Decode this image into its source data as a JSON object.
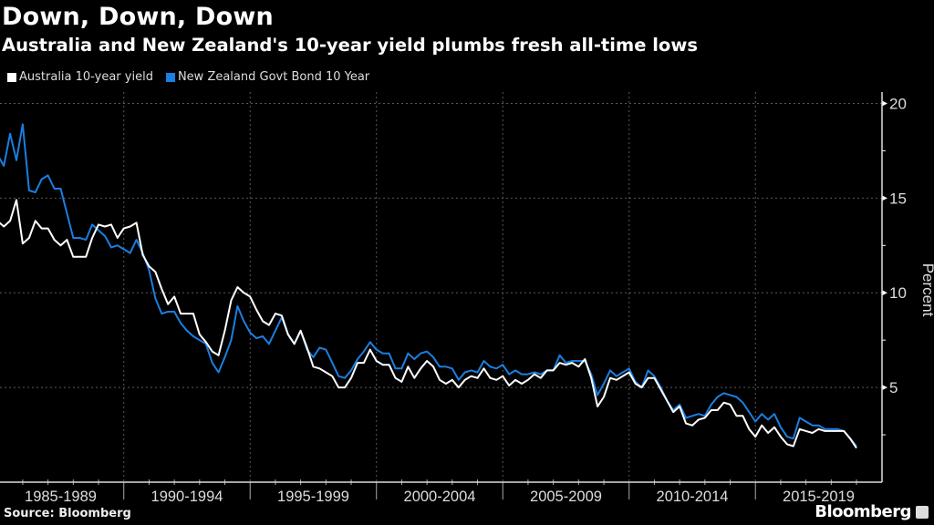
{
  "title": "Down, Down, Down",
  "subtitle": "Australia and New Zealand's 10-year yield plumbs fresh all-time lows",
  "source": "Source: Bloomberg",
  "logo": "Bloomberg",
  "colors": {
    "australia": "#ffffff",
    "new_zealand": "#1a7fe0",
    "background": "#000000",
    "grid": "#5a5a5a"
  },
  "chart_data": {
    "type": "line",
    "title": "Down, Down, Down",
    "subtitle": "Australia and New Zealand's 10-year yield plumbs fresh all-time lows",
    "ylabel": "Percent",
    "xlabel": "",
    "ylim": [
      0,
      20.6
    ],
    "yticks": [
      5,
      10,
      15,
      20
    ],
    "y_axis_side": "right",
    "grid": true,
    "legend_position": "top-left",
    "x_tick_labels": [
      "1985-1989",
      "1990-1994",
      "1995-1999",
      "2000-2004",
      "2005-2009",
      "2010-2014",
      "2015-2019"
    ],
    "x": [
      "1985-Q1",
      "1985-Q2",
      "1985-Q3",
      "1985-Q4",
      "1986-Q1",
      "1986-Q2",
      "1986-Q3",
      "1986-Q4",
      "1987-Q1",
      "1987-Q2",
      "1987-Q3",
      "1987-Q4",
      "1988-Q1",
      "1988-Q2",
      "1988-Q3",
      "1988-Q4",
      "1989-Q1",
      "1989-Q2",
      "1989-Q3",
      "1989-Q4",
      "1990-Q1",
      "1990-Q2",
      "1990-Q3",
      "1990-Q4",
      "1991-Q1",
      "1991-Q2",
      "1991-Q3",
      "1991-Q4",
      "1992-Q1",
      "1992-Q2",
      "1992-Q3",
      "1992-Q4",
      "1993-Q1",
      "1993-Q2",
      "1993-Q3",
      "1993-Q4",
      "1994-Q1",
      "1994-Q2",
      "1994-Q3",
      "1994-Q4",
      "1995-Q1",
      "1995-Q2",
      "1995-Q3",
      "1995-Q4",
      "1996-Q1",
      "1996-Q2",
      "1996-Q3",
      "1996-Q4",
      "1997-Q1",
      "1997-Q2",
      "1997-Q3",
      "1997-Q4",
      "1998-Q1",
      "1998-Q2",
      "1998-Q3",
      "1998-Q4",
      "1999-Q1",
      "1999-Q2",
      "1999-Q3",
      "1999-Q4",
      "2000-Q1",
      "2000-Q2",
      "2000-Q3",
      "2000-Q4",
      "2001-Q1",
      "2001-Q2",
      "2001-Q3",
      "2001-Q4",
      "2002-Q1",
      "2002-Q2",
      "2002-Q3",
      "2002-Q4",
      "2003-Q1",
      "2003-Q2",
      "2003-Q3",
      "2003-Q4",
      "2004-Q1",
      "2004-Q2",
      "2004-Q3",
      "2004-Q4",
      "2005-Q1",
      "2005-Q2",
      "2005-Q3",
      "2005-Q4",
      "2006-Q1",
      "2006-Q2",
      "2006-Q3",
      "2006-Q4",
      "2007-Q1",
      "2007-Q2",
      "2007-Q3",
      "2007-Q4",
      "2008-Q1",
      "2008-Q2",
      "2008-Q3",
      "2008-Q4",
      "2009-Q1",
      "2009-Q2",
      "2009-Q3",
      "2009-Q4",
      "2010-Q1",
      "2010-Q2",
      "2010-Q3",
      "2010-Q4",
      "2011-Q1",
      "2011-Q2",
      "2011-Q3",
      "2011-Q4",
      "2012-Q1",
      "2012-Q2",
      "2012-Q3",
      "2012-Q4",
      "2013-Q1",
      "2013-Q2",
      "2013-Q3",
      "2013-Q4",
      "2014-Q1",
      "2014-Q2",
      "2014-Q3",
      "2014-Q4",
      "2015-Q1",
      "2015-Q2",
      "2015-Q3",
      "2015-Q4",
      "2016-Q1",
      "2016-Q2",
      "2016-Q3",
      "2016-Q4",
      "2017-Q1",
      "2017-Q2",
      "2017-Q3",
      "2017-Q4",
      "2018-Q1",
      "2018-Q2",
      "2018-Q3",
      "2018-Q4",
      "2019-Q1"
    ],
    "series": [
      {
        "name": "Australia 10-year yield",
        "color": "#ffffff",
        "values": [
          13.8,
          13.5,
          13.8,
          14.9,
          12.6,
          12.9,
          13.8,
          13.4,
          13.4,
          12.8,
          12.5,
          12.8,
          11.9,
          11.9,
          11.9,
          12.9,
          13.6,
          13.5,
          13.6,
          12.9,
          13.4,
          13.5,
          13.7,
          12.0,
          11.4,
          11.1,
          10.2,
          9.4,
          9.8,
          8.9,
          8.9,
          8.9,
          7.8,
          7.4,
          6.9,
          6.7,
          8.0,
          9.6,
          10.3,
          10.0,
          9.8,
          9.1,
          8.5,
          8.3,
          8.9,
          8.8,
          7.8,
          7.3,
          8.0,
          7.1,
          6.1,
          6.0,
          5.8,
          5.6,
          5.0,
          5.0,
          5.5,
          6.3,
          6.3,
          7.0,
          6.4,
          6.2,
          6.2,
          5.5,
          5.3,
          6.1,
          5.5,
          6.0,
          6.4,
          6.1,
          5.4,
          5.2,
          5.4,
          5.0,
          5.4,
          5.6,
          5.5,
          6.0,
          5.5,
          5.4,
          5.6,
          5.1,
          5.4,
          5.2,
          5.4,
          5.7,
          5.5,
          5.9,
          5.9,
          6.3,
          6.2,
          6.3,
          6.1,
          6.5,
          5.5,
          4.0,
          4.5,
          5.5,
          5.4,
          5.6,
          5.8,
          5.2,
          5.0,
          5.5,
          5.5,
          4.9,
          4.3,
          3.7,
          4.0,
          3.1,
          3.0,
          3.3,
          3.4,
          3.8,
          3.8,
          4.2,
          4.1,
          3.5,
          3.5,
          2.8,
          2.4,
          3.0,
          2.6,
          2.9,
          2.4,
          2.0,
          1.9,
          2.8,
          2.7,
          2.6,
          2.8,
          2.7,
          2.7,
          2.7,
          2.7,
          2.3,
          1.8
        ]
      },
      {
        "name": "New Zealand Govt Bond 10 Year",
        "color": "#1a7fe0",
        "values": [
          17.3,
          16.7,
          18.4,
          17.0,
          18.9,
          15.4,
          15.3,
          16.0,
          16.2,
          15.5,
          15.5,
          14.2,
          12.9,
          12.9,
          12.8,
          13.6,
          13.3,
          13.0,
          12.4,
          12.5,
          12.3,
          12.1,
          12.8,
          12.1,
          11.2,
          9.7,
          8.9,
          9.0,
          9.0,
          8.4,
          8.0,
          7.7,
          7.5,
          7.3,
          6.3,
          5.8,
          6.6,
          7.5,
          9.3,
          8.5,
          7.9,
          7.6,
          7.7,
          7.3,
          8.0,
          8.7,
          7.8,
          7.3,
          8.0,
          7.0,
          6.6,
          7.1,
          7.0,
          6.3,
          5.6,
          5.5,
          5.9,
          6.5,
          6.9,
          7.4,
          7.0,
          6.8,
          6.8,
          6.0,
          6.0,
          6.8,
          6.5,
          6.8,
          6.9,
          6.6,
          6.1,
          6.1,
          6.0,
          5.4,
          5.8,
          5.9,
          5.8,
          6.4,
          6.1,
          6.0,
          6.2,
          5.7,
          5.9,
          5.7,
          5.7,
          5.8,
          5.7,
          5.9,
          5.9,
          6.7,
          6.3,
          6.4,
          6.4,
          6.4,
          5.7,
          4.6,
          5.2,
          5.9,
          5.6,
          5.8,
          6.0,
          5.3,
          5.0,
          5.9,
          5.6,
          5.0,
          4.3,
          3.8,
          4.1,
          3.4,
          3.5,
          3.6,
          3.5,
          4.1,
          4.5,
          4.7,
          4.6,
          4.5,
          4.2,
          3.7,
          3.2,
          3.6,
          3.3,
          3.6,
          2.9,
          2.4,
          2.3,
          3.4,
          3.2,
          3.0,
          3.0,
          2.8,
          2.8,
          2.8,
          2.7,
          2.3,
          1.9
        ]
      }
    ]
  }
}
